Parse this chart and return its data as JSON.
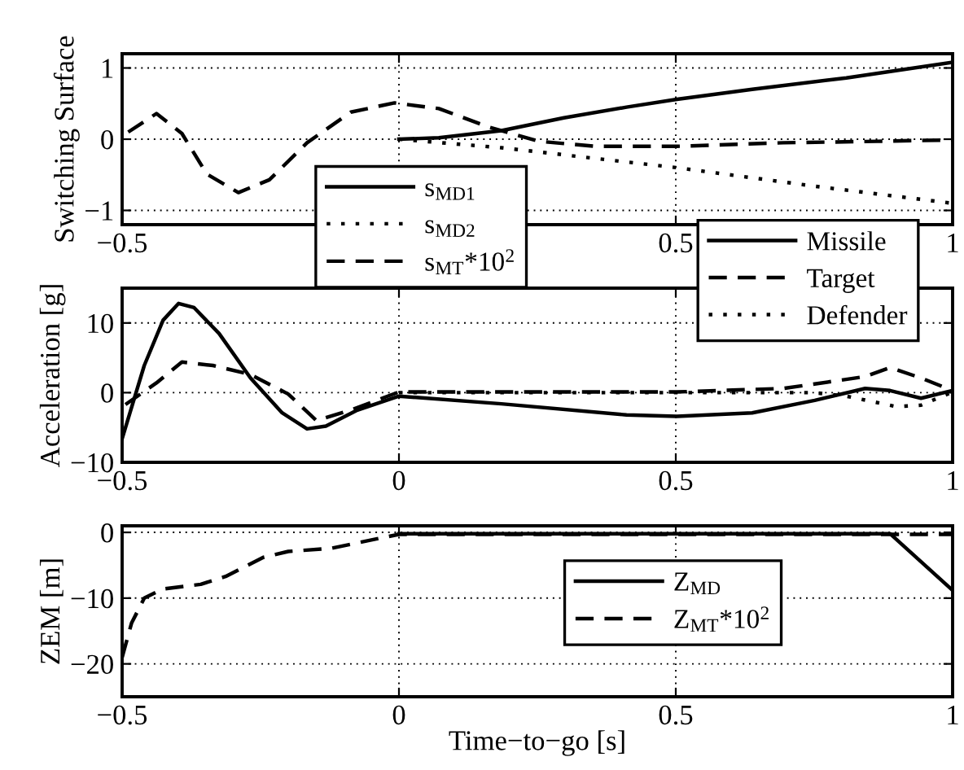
{
  "chart_data": [
    {
      "type": "line",
      "ylabel": "Switching Surface",
      "xlim": [
        -0.5,
        1
      ],
      "ylim": [
        -1.2,
        1.2
      ],
      "xticks": [
        -0.5,
        {
          "value": 0,
          "label": null
        },
        0.5,
        1
      ],
      "yticks": [
        -1,
        0,
        1
      ],
      "grid": true,
      "legend": "bottom",
      "series": [
        {
          "name": "s$_{MD1}$",
          "color": "#000000",
          "line_style": "solid",
          "x": [
            0,
            0.072,
            0.185,
            0.298,
            0.411,
            0.502,
            0.638,
            0.808,
            1
          ],
          "values": [
            0,
            0.02,
            0.12,
            0.3,
            0.45,
            0.56,
            0.7,
            0.86,
            1.08
          ]
        },
        {
          "name": "s$_{MD2}$",
          "color": "#000000",
          "line_style": "dotted",
          "x": [
            0,
            0.185,
            0.502,
            0.751,
            1
          ],
          "values": [
            0,
            -0.12,
            -0.4,
            -0.66,
            -0.9
          ]
        },
        {
          "name": "s$_{MT}$*10$^{2}$",
          "color": "#000000",
          "line_style": "dashed",
          "x": [
            -0.489,
            -0.438,
            -0.392,
            -0.347,
            -0.29,
            -0.234,
            -0.166,
            -0.087,
            -0.008,
            0.072,
            0.162,
            0.253,
            0.355,
            0.502,
            0.694,
            0.864,
            1
          ],
          "values": [
            0.1,
            0.36,
            0.08,
            -0.49,
            -0.75,
            -0.57,
            -0.05,
            0.38,
            0.51,
            0.43,
            0.17,
            -0.03,
            -0.1,
            -0.1,
            -0.05,
            -0.03,
            -0.01
          ]
        }
      ]
    },
    {
      "type": "line",
      "ylabel": "Acceleration [g]",
      "xlim": [
        -0.5,
        1
      ],
      "ylim": [
        -10,
        15
      ],
      "xticks": [
        -0.5,
        0,
        0.5,
        1
      ],
      "yticks": [
        -10,
        0,
        10
      ],
      "grid": true,
      "legend": "top right",
      "series": [
        {
          "name": "Missile",
          "color": "#000000",
          "line_style": "solid",
          "x": [
            -0.5,
            -0.46,
            -0.426,
            -0.398,
            -0.37,
            -0.325,
            -0.268,
            -0.211,
            -0.166,
            -0.132,
            -0.075,
            0,
            0.185,
            0.411,
            0.502,
            0.638,
            0.751,
            0.842,
            0.887,
            0.943,
            1
          ],
          "values": [
            -6.6,
            3.9,
            10.4,
            12.8,
            12.2,
            8.5,
            2.1,
            -2.9,
            -5.2,
            -4.8,
            -2.5,
            -0.5,
            -1.6,
            -3.2,
            -3.4,
            -2.9,
            -1.1,
            0.6,
            0.3,
            -0.8,
            0.3
          ]
        },
        {
          "name": "Target",
          "color": "#000000",
          "line_style": "dashed",
          "x": [
            -0.494,
            -0.438,
            -0.392,
            -0.336,
            -0.268,
            -0.2,
            -0.149,
            -0.087,
            0,
            0.502,
            0.694,
            0.842,
            0.887,
            0.943,
            1
          ],
          "values": [
            -1.7,
            1.4,
            4.4,
            3.9,
            2.6,
            -0.2,
            -4.0,
            -2.5,
            0.1,
            0.1,
            0.6,
            2.3,
            3.6,
            2.1,
            0.3
          ]
        },
        {
          "name": "Defender",
          "color": "#000000",
          "line_style": "dotted",
          "x": [
            0,
            0.5,
            0.75,
            0.808,
            0.898,
            0.943,
            1
          ],
          "values": [
            0,
            0,
            0,
            -0.5,
            -2.0,
            -1.8,
            0.1
          ]
        }
      ]
    },
    {
      "type": "line",
      "ylabel": "ZEM [m]",
      "xlabel": "Time−to−go [s]",
      "xlim": [
        -0.5,
        1
      ],
      "ylim": [
        -25,
        1
      ],
      "xticks": [
        -0.5,
        0,
        0.5,
        1
      ],
      "yticks": [
        -20,
        -10,
        0
      ],
      "grid": true,
      "legend": "right",
      "series": [
        {
          "name": "Z$_{MD}$",
          "color": "#000000",
          "line_style": "solid",
          "x": [
            0,
            0.5,
            0.887,
            1
          ],
          "values": [
            -0.2,
            -0.2,
            -0.2,
            -8.8
          ]
        },
        {
          "name": "Z$_{MT}$*10$^{2}$",
          "color": "#000000",
          "line_style": "dashed",
          "x": [
            -0.5,
            -0.483,
            -0.46,
            -0.426,
            -0.358,
            -0.313,
            -0.245,
            -0.2,
            -0.121,
            -0.041,
            0,
            0.5,
            1
          ],
          "values": [
            -19,
            -13.8,
            -10,
            -8.6,
            -7.9,
            -6.7,
            -3.8,
            -2.9,
            -2.4,
            -1.0,
            -0.3,
            -0.3,
            -0.3
          ]
        }
      ]
    }
  ]
}
